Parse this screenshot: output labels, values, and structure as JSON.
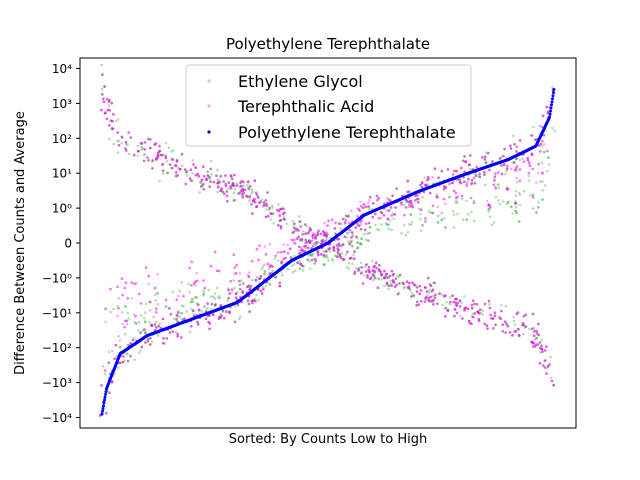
{
  "chart_data": {
    "type": "scatter",
    "title": "Polyethylene Terephthalate",
    "xlabel": "Sorted: By Counts Low to High",
    "ylabel": "Difference Between Counts and Average",
    "yscale": "symlog",
    "ylim": [
      -20000,
      20000
    ],
    "y_ticks": [
      {
        "value": 10000,
        "label": "10⁴"
      },
      {
        "value": 1000,
        "label": "10³"
      },
      {
        "value": 100,
        "label": "10²"
      },
      {
        "value": 10,
        "label": "10¹"
      },
      {
        "value": 1,
        "label": "10⁰"
      },
      {
        "value": 0,
        "label": "0"
      },
      {
        "value": -1,
        "label": "−10⁰"
      },
      {
        "value": -10,
        "label": "−10¹"
      },
      {
        "value": -100,
        "label": "−10²"
      },
      {
        "value": -1000,
        "label": "−10³"
      },
      {
        "value": -10000,
        "label": "−10⁴"
      }
    ],
    "x_ticks": "none",
    "grid": false,
    "legend_position": "top-center",
    "series": [
      {
        "name": "Ethylene Glycol",
        "color": "#2ca02c",
        "alpha": 0.35,
        "pattern": "scattered-around-sorted-curve"
      },
      {
        "name": "Terephthalic Acid",
        "color": "#ff00ff",
        "alpha": 0.35,
        "pattern": "scattered-around-sorted-curve"
      },
      {
        "name": "Polyethylene Terephthalate",
        "color": "#0000ff",
        "alpha": 1.0,
        "pattern": "sorted-monotonic"
      }
    ],
    "curve_anchors": [
      {
        "q": 0.0,
        "y": -8000
      },
      {
        "q": 0.01,
        "y": -1500
      },
      {
        "q": 0.04,
        "y": -150
      },
      {
        "q": 0.1,
        "y": -45
      },
      {
        "q": 0.2,
        "y": -15
      },
      {
        "q": 0.3,
        "y": -5
      },
      {
        "q": 0.42,
        "y": -0.5
      },
      {
        "q": 0.5,
        "y": 0
      },
      {
        "q": 0.58,
        "y": 0.8
      },
      {
        "q": 0.7,
        "y": 3
      },
      {
        "q": 0.8,
        "y": 9
      },
      {
        "q": 0.9,
        "y": 25
      },
      {
        "q": 0.96,
        "y": 60
      },
      {
        "q": 0.99,
        "y": 400
      },
      {
        "q": 1.0,
        "y": 2500
      }
    ]
  }
}
